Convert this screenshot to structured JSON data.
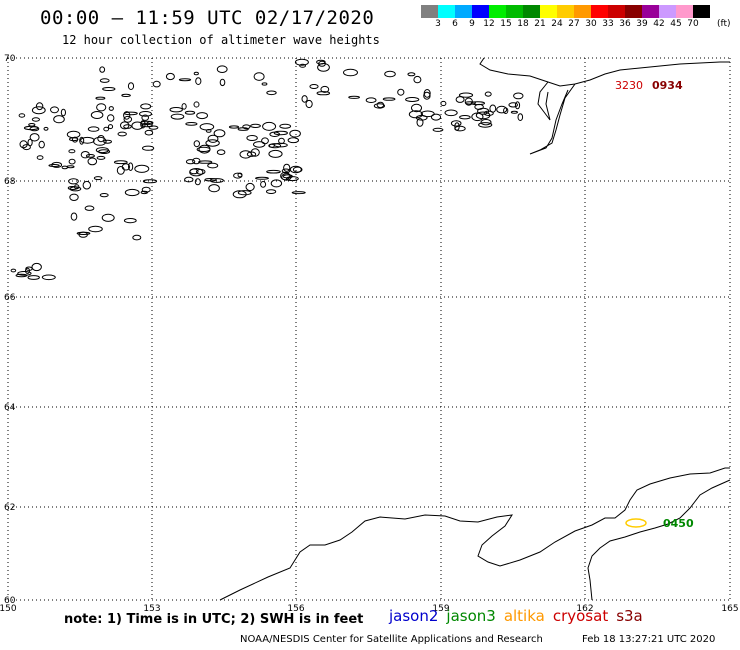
{
  "header": {
    "title": "00:00 – 11:59 UTC 02/17/2020",
    "subtitle": "12 hour collection of altimeter wave heights"
  },
  "legend": {
    "unit": "(ft)",
    "labels": [
      "3",
      "6",
      "9",
      "12",
      "15",
      "18",
      "21",
      "24",
      "27",
      "30",
      "33",
      "36",
      "39",
      "42",
      "45",
      "70"
    ],
    "colors": [
      "#808080",
      "#00ffff",
      "#00aaff",
      "#0000ff",
      "#00ee00",
      "#00bb00",
      "#008800",
      "#ffff00",
      "#ffcc00",
      "#ff9900",
      "#ff0000",
      "#cc0000",
      "#880000",
      "#990099",
      "#cc99ff",
      "#ff99cc",
      "#000000"
    ]
  },
  "axes": {
    "lon_ticks": [
      "150",
      "153",
      "156",
      "159",
      "162",
      "165"
    ],
    "lat_ticks": [
      "70",
      "68",
      "66",
      "64",
      "62",
      "60"
    ]
  },
  "tracks": [
    {
      "time_start": "3230",
      "time_end": "0934",
      "start_color": "#cc0000",
      "end_color": "#880000"
    },
    {
      "time_start": "",
      "time_end": "0450",
      "start_color": "#ffcc00",
      "end_color": "#008800"
    }
  ],
  "notes": {
    "text": "note:  1) Time is in UTC;  2) SWH is in feet",
    "satellites": [
      {
        "name": "jason2",
        "color": "#0000cc"
      },
      {
        "name": "jason3",
        "color": "#008800"
      },
      {
        "name": "altika",
        "color": "#ff9900"
      },
      {
        "name": "cryosat",
        "color": "#cc0000"
      },
      {
        "name": "s3a",
        "color": "#880000"
      }
    ]
  },
  "footer": {
    "left": "NOAA/NESDIS Center for Satellite Applications and Research",
    "right": "Feb 18 13:27:21 UTC 2020"
  }
}
